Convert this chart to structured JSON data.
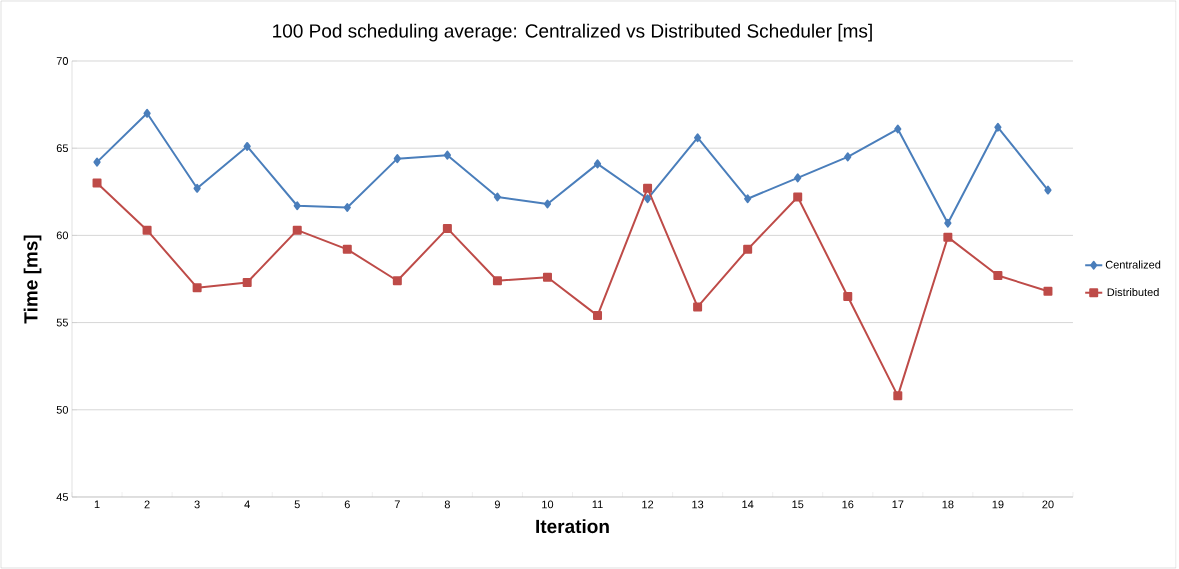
{
  "chart_data": {
    "type": "line",
    "title": "100 Pod scheduling average: Centralized vs Distributed Scheduler [ms]",
    "xlabel": "Iteration",
    "ylabel": "Time [ms]",
    "categories": [
      "1",
      "2",
      "3",
      "4",
      "5",
      "6",
      "7",
      "8",
      "9",
      "10",
      "11",
      "12",
      "13",
      "14",
      "15",
      "16",
      "17",
      "18",
      "19",
      "20"
    ],
    "series": [
      {
        "name": "Centralized",
        "color": "#4a7ebb",
        "marker": "diamond",
        "values": [
          64.2,
          67.0,
          62.7,
          65.1,
          61.7,
          61.6,
          64.4,
          64.6,
          62.2,
          61.8,
          64.1,
          62.1,
          65.6,
          62.1,
          63.3,
          64.5,
          66.1,
          60.7,
          66.2,
          62.6
        ]
      },
      {
        "name": "Distributed",
        "color": "#be4b48",
        "marker": "square",
        "values": [
          63.0,
          60.3,
          57.0,
          57.3,
          60.3,
          59.2,
          57.4,
          60.4,
          57.4,
          57.6,
          55.4,
          62.7,
          55.9,
          59.2,
          62.2,
          56.5,
          50.8,
          59.9,
          57.7,
          56.8
        ]
      }
    ],
    "ylim": [
      45,
      70
    ],
    "yticks": [
      45,
      50,
      55,
      60,
      65,
      70
    ],
    "grid": "y",
    "legend": "right",
    "line_style": "solid"
  }
}
